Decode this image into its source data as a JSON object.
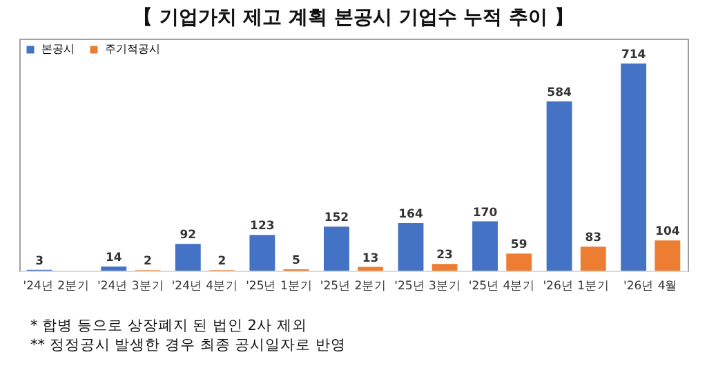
{
  "chart_data": {
    "type": "bar",
    "title": "【 기업가치 제고 계획 본공시 기업수 누적 추이 】",
    "categories": [
      "'24년 2분기",
      "'24년 3분기",
      "'24년 4분기",
      "'25년 1분기",
      "'25년 2분기",
      "'25년 3분기",
      "'25년 4분기",
      "'26년 1분기",
      "'26년 4월"
    ],
    "series": [
      {
        "name": "본공시",
        "color": "#4472c4",
        "values": [
          3,
          14,
          92,
          123,
          152,
          164,
          170,
          584,
          714
        ]
      },
      {
        "name": "주기적공시",
        "color": "#ed7d31",
        "values": [
          null,
          2,
          2,
          5,
          13,
          23,
          59,
          83,
          104
        ]
      }
    ],
    "data_labels": true,
    "legend": "top left",
    "grid": false,
    "annotations": [
      "* 합병 등으로 상장폐지 된 법인 2사 제외",
      "** 정정공시 발생한 경우 최종 공시일자로 반영"
    ]
  }
}
